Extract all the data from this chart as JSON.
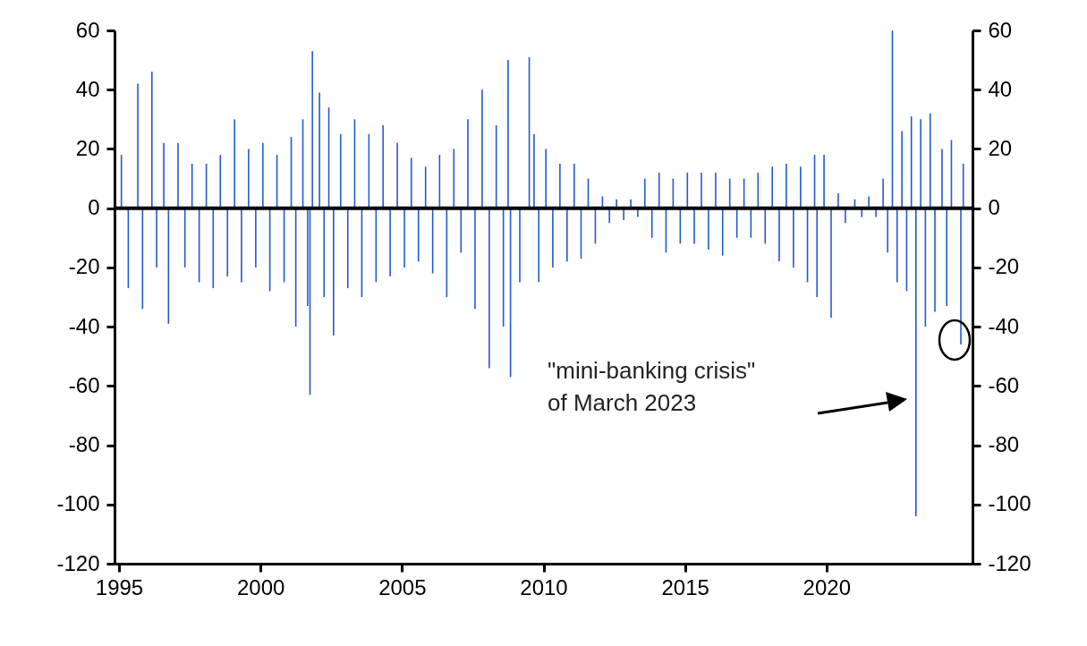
{
  "chart_data": {
    "type": "bar",
    "x": [
      "1995-02",
      "1995-05",
      "1995-09",
      "1995-11",
      "1996-03",
      "1996-05",
      "1996-08",
      "1996-10",
      "1997-02",
      "1997-05",
      "1997-08",
      "1997-11",
      "1998-02",
      "1998-05",
      "1998-08",
      "1998-11",
      "1999-02",
      "1999-05",
      "1999-08",
      "1999-11",
      "2000-02",
      "2000-05",
      "2000-08",
      "2000-11",
      "2001-02",
      "2001-04",
      "2001-07",
      "2001-09",
      "2001-10",
      "2001-11",
      "2002-02",
      "2002-04",
      "2002-06",
      "2002-08",
      "2002-11",
      "2003-02",
      "2003-05",
      "2003-08",
      "2003-11",
      "2004-02",
      "2004-05",
      "2004-08",
      "2004-11",
      "2005-02",
      "2005-05",
      "2005-08",
      "2005-11",
      "2006-02",
      "2006-05",
      "2006-08",
      "2006-11",
      "2007-02",
      "2007-05",
      "2007-08",
      "2007-11",
      "2008-02",
      "2008-05",
      "2008-08",
      "2008-10",
      "2008-11",
      "2009-03",
      "2009-07",
      "2009-09",
      "2009-11",
      "2010-02",
      "2010-05",
      "2010-08",
      "2010-11",
      "2011-02",
      "2011-05",
      "2011-08",
      "2011-11",
      "2012-02",
      "2012-05",
      "2012-08",
      "2012-11",
      "2013-02",
      "2013-05",
      "2013-08",
      "2013-11",
      "2014-02",
      "2014-05",
      "2014-08",
      "2014-11",
      "2015-02",
      "2015-05",
      "2015-08",
      "2015-11",
      "2016-02",
      "2016-05",
      "2016-08",
      "2016-11",
      "2017-02",
      "2017-05",
      "2017-08",
      "2017-11",
      "2018-02",
      "2018-05",
      "2018-08",
      "2018-11",
      "2019-02",
      "2019-05",
      "2019-08",
      "2019-09",
      "2019-12",
      "2020-03",
      "2020-06",
      "2020-09",
      "2021-01",
      "2021-04",
      "2021-07",
      "2021-10",
      "2022-01",
      "2022-03",
      "2022-05",
      "2022-07",
      "2022-09",
      "2022-11",
      "2023-01",
      "2023-03",
      "2023-05",
      "2023-07",
      "2023-09",
      "2023-11",
      "2024-02",
      "2024-04",
      "2024-06",
      "2024-10",
      "2024-11"
    ],
    "series": [
      {
        "color": "#2459cf",
        "values": [
          18,
          -27,
          42,
          -34,
          46,
          -20,
          22,
          -39,
          22,
          -20,
          15,
          -25,
          15,
          -27,
          18,
          -23,
          30,
          -25,
          20,
          -20,
          22,
          -28,
          18,
          -25,
          24,
          -40,
          30,
          -33,
          -63,
          53,
          39,
          -30,
          34,
          -43,
          25,
          -27,
          30,
          -30,
          25,
          -25,
          28,
          -23,
          22,
          -20,
          17,
          -18,
          14,
          -22,
          18,
          -30,
          20,
          -15,
          30,
          -34,
          40,
          -54,
          28,
          -40,
          50,
          -57,
          -25,
          51,
          25,
          -25,
          20,
          -20,
          15,
          -18,
          15,
          -17,
          10,
          -12,
          4,
          -5,
          3,
          -4,
          3,
          -3,
          10,
          -10,
          12,
          -15,
          10,
          -12,
          12,
          -12,
          12,
          -14,
          12,
          -16,
          10,
          -10,
          10,
          -10,
          12,
          -12,
          14,
          -18,
          15,
          -20,
          14,
          -25,
          18,
          -30,
          18,
          -37,
          5,
          -5,
          3,
          -3,
          4,
          -3,
          10,
          -15,
          60,
          -25,
          26,
          -28,
          31,
          -104,
          30,
          -40,
          32,
          -35,
          20,
          -33,
          23,
          -46,
          15
        ]
      }
    ],
    "ylim": [
      -120,
      60
    ],
    "yticks": [
      -120,
      -100,
      -80,
      -60,
      -40,
      -20,
      0,
      20,
      40,
      60
    ],
    "y2lim": [
      -120,
      60
    ],
    "y2ticks": [
      -120,
      -100,
      -80,
      -60,
      -40,
      -20,
      0,
      20,
      40,
      60
    ],
    "xlim": [
      "1995",
      "2025"
    ],
    "xticks": [
      "1995",
      "2000",
      "2005",
      "2010",
      "2015",
      "2020"
    ],
    "ref_lines": [
      {
        "axis": "y",
        "value": 0,
        "color": "#000000"
      }
    ],
    "annotations": [
      "\"mini-banking crisis\"\nof March 2023"
    ],
    "grid": false
  }
}
